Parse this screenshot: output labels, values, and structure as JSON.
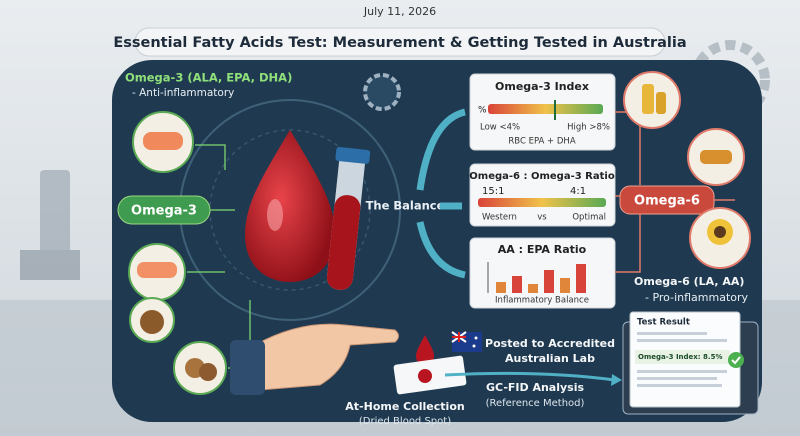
{
  "header": {
    "date": "July 11, 2026",
    "title": "Essential Fatty Acids Test: Measurement & Getting Tested in Australia"
  },
  "omega3": {
    "heading": "Omega-3 (ALA, EPA, DHA)",
    "note": "- Anti-inflammatory",
    "badge": "Omega-3"
  },
  "center": {
    "label": "The Balance"
  },
  "panels": {
    "index": {
      "title": "Omega-3 Index",
      "unit": "%",
      "low": "Low <4%",
      "high": "High >8%",
      "caption": "RBC EPA + DHA"
    },
    "ratio": {
      "title": "Omega-6 : Omega-3 Ratio",
      "left_value": "15:1",
      "right_value": "4:1",
      "left": "Western",
      "middle": "vs",
      "right": "Optimal"
    },
    "aa_epa": {
      "title": "AA : EPA Ratio",
      "caption": "Inflammatory Balance"
    }
  },
  "omega6": {
    "badge": "Omega-6",
    "heading": "Omega-6 (LA, AA)",
    "note": "- Pro-inflammatory"
  },
  "steps": {
    "collection": {
      "title": "At-Home Collection",
      "note": "(Dried Blood Spot)"
    },
    "post": {
      "line1": "Posted to Accredited",
      "line2": "Australian Lab"
    },
    "analysis": {
      "title": "GC-FID Analysis",
      "note": "(Reference Method)"
    }
  },
  "result": {
    "title": "Test Result",
    "line": "Omega-3 Index: 8.5%"
  }
}
